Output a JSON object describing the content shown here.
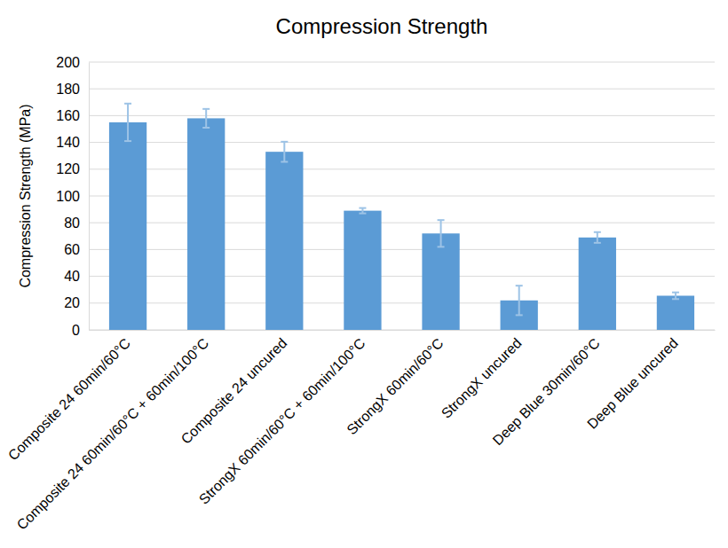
{
  "chart_data": {
    "type": "bar",
    "title": "Compression Strength",
    "y_label": "Compression Strength (MPa)",
    "categories": [
      "Composite 24 60min/60°C",
      "Composite 24 60min/60°C + 60min/100°C",
      "Composite 24 uncured",
      "StrongX 60min/60°C + 60min/100°C",
      "StrongX 60min/60°C",
      "StrongX uncured",
      "Deep Blue 30min/60°C",
      "Deep Blue uncured"
    ],
    "values": [
      155,
      158,
      133,
      89,
      72,
      22,
      69,
      25.5
    ],
    "errors": [
      14,
      7,
      7.5,
      2,
      10,
      11,
      4,
      2.5
    ],
    "color": "#5b9bd5",
    "ylim": [
      0,
      200
    ],
    "yticks": [
      0,
      20,
      40,
      60,
      80,
      100,
      120,
      140,
      160,
      180,
      200
    ],
    "grid": true
  }
}
